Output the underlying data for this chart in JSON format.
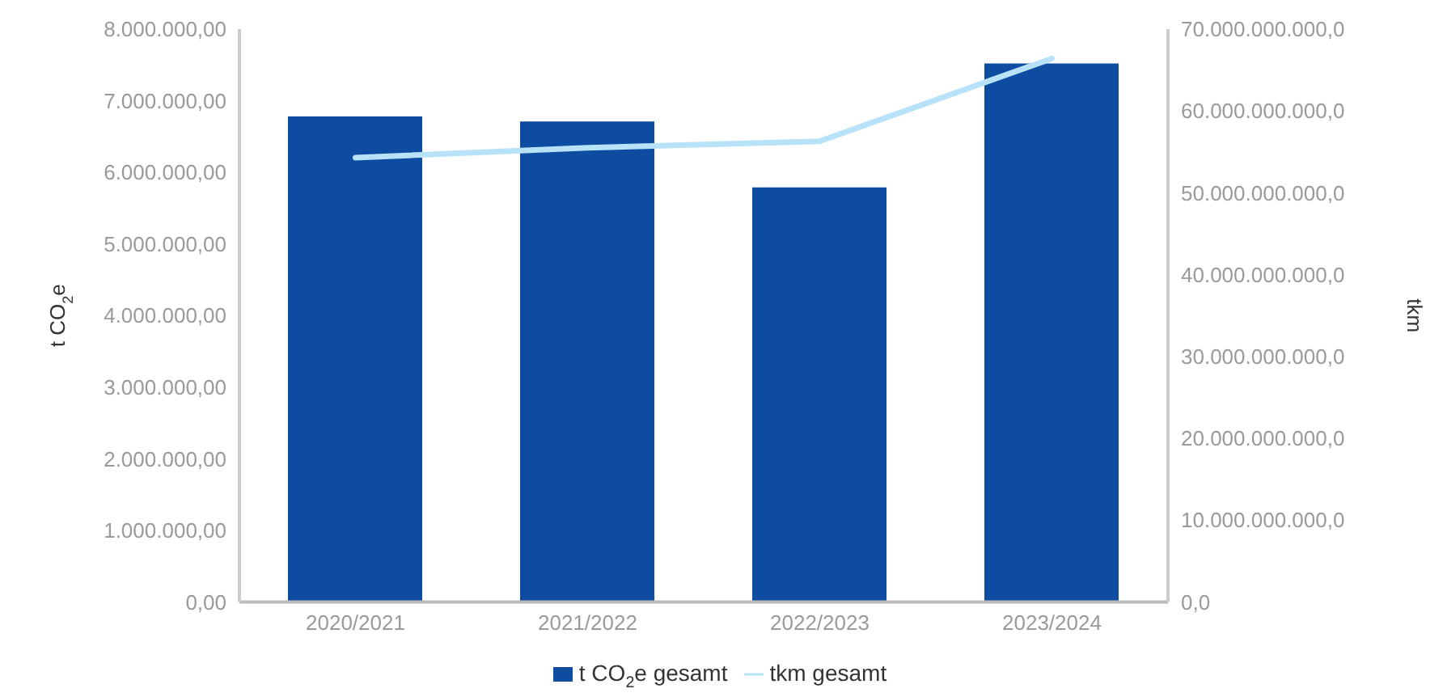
{
  "chart_data": {
    "type": "bar",
    "categories": [
      "2020/2021",
      "2021/2022",
      "2022/2023",
      "2023/2024"
    ],
    "series": [
      {
        "name": "t CO$_{2}$e gesamt",
        "color": "#0d4ca1",
        "values": [
          6780000,
          6710000,
          5790000,
          7520000
        ]
      },
      {
        "name": "tkm gesamt",
        "type": "line",
        "axis": "y2",
        "color": "#b8e2f8",
        "values": [
          54300000000,
          55500000000,
          56300000000,
          66400000000
        ]
      }
    ],
    "ylabel": "t CO$_{2}$e",
    "y2label": "tkm",
    "ylim": [
      0,
      8000000
    ],
    "yticks": [
      {
        "value": 0,
        "label": "0,00"
      },
      {
        "value": 1000000,
        "label": "1.000.000,00"
      },
      {
        "value": 2000000,
        "label": "2.000.000,00"
      },
      {
        "value": 3000000,
        "label": "3.000.000,00"
      },
      {
        "value": 4000000,
        "label": "4.000.000,00"
      },
      {
        "value": 5000000,
        "label": "5.000.000,00"
      },
      {
        "value": 6000000,
        "label": "6.000.000,00"
      },
      {
        "value": 7000000,
        "label": "7.000.000,00"
      },
      {
        "value": 8000000,
        "label": "8.000.000,00"
      }
    ],
    "y2lim": [
      0,
      70000000000
    ],
    "y2ticks": [
      {
        "value": 0,
        "label": "0,0"
      },
      {
        "value": 10000000000,
        "label": "10.000.000.000,0"
      },
      {
        "value": 20000000000,
        "label": "20.000.000.000,0"
      },
      {
        "value": 30000000000,
        "label": "30.000.000.000,0"
      },
      {
        "value": 40000000000,
        "label": "40.000.000.000,0"
      },
      {
        "value": 50000000000,
        "label": "50.000.000.000,0"
      },
      {
        "value": 60000000000,
        "label": "60.000.000.000,0"
      },
      {
        "value": 70000000000,
        "label": "70.000.000.000,0"
      }
    ],
    "grid": false,
    "legend": "bottom",
    "marker": "none",
    "line_style": "solid"
  }
}
